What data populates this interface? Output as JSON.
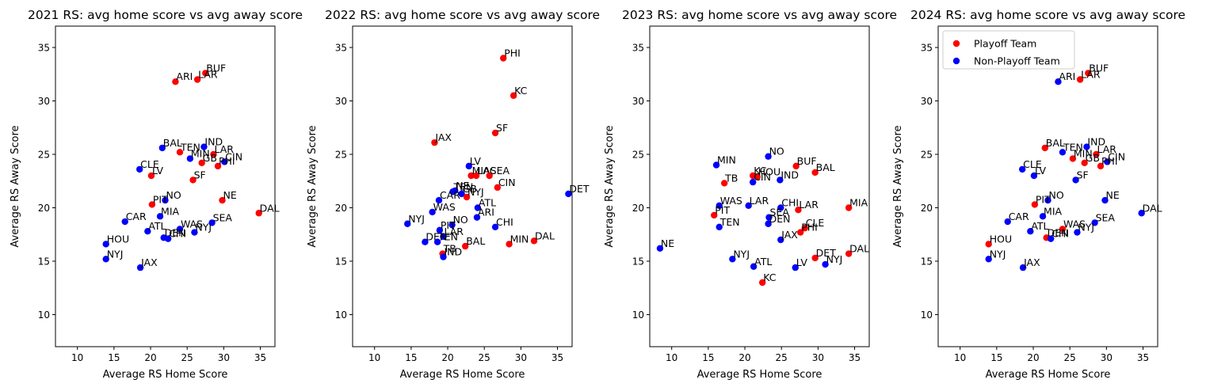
{
  "chart_data": [
    {
      "type": "scatter",
      "title": "2021 RS: avg home score vs avg away score",
      "xlabel": "Average RS Home Score",
      "ylabel": "Average RS Away Score",
      "xlim": [
        7,
        37
      ],
      "ylim": [
        7,
        37
      ],
      "xticks": [
        10,
        15,
        20,
        25,
        30,
        35
      ],
      "yticks": [
        10,
        15,
        20,
        25,
        30,
        35
      ],
      "grid": false,
      "points": [
        {
          "team": "BUF",
          "x": 27.5,
          "y": 32.6,
          "playoff": true
        },
        {
          "team": "ARI",
          "x": 23.4,
          "y": 31.8,
          "playoff": true
        },
        {
          "team": "LAR",
          "x": 26.4,
          "y": 32.0,
          "playoff": true
        },
        {
          "team": "IND",
          "x": 27.3,
          "y": 25.7,
          "playoff": false
        },
        {
          "team": "BAL",
          "x": 21.6,
          "y": 25.6,
          "playoff": false
        },
        {
          "team": "TEN",
          "x": 24.0,
          "y": 25.2,
          "playoff": true
        },
        {
          "team": "LAR",
          "x": 28.6,
          "y": 25.0,
          "playoff": true
        },
        {
          "team": "CIN",
          "x": 30.1,
          "y": 24.3,
          "playoff": false
        },
        {
          "team": "MIN",
          "x": 25.4,
          "y": 24.6,
          "playoff": false
        },
        {
          "team": "GB",
          "x": 27.0,
          "y": 24.2,
          "playoff": true
        },
        {
          "team": "PHI",
          "x": 29.2,
          "y": 23.9,
          "playoff": true
        },
        {
          "team": "CLE",
          "x": 18.5,
          "y": 23.6,
          "playoff": false
        },
        {
          "team": "LV",
          "x": 20.1,
          "y": 23.0,
          "playoff": true
        },
        {
          "team": "SF",
          "x": 25.8,
          "y": 22.6,
          "playoff": true
        },
        {
          "team": "NO",
          "x": 22.0,
          "y": 20.7,
          "playoff": false
        },
        {
          "team": "NE",
          "x": 29.8,
          "y": 20.7,
          "playoff": true
        },
        {
          "team": "PIT",
          "x": 20.2,
          "y": 20.3,
          "playoff": true
        },
        {
          "team": "MIA",
          "x": 21.3,
          "y": 19.2,
          "playoff": false
        },
        {
          "team": "DAL",
          "x": 34.8,
          "y": 19.5,
          "playoff": true
        },
        {
          "team": "CAR",
          "x": 16.5,
          "y": 18.7,
          "playoff": false
        },
        {
          "team": "SEA",
          "x": 28.4,
          "y": 18.6,
          "playoff": false
        },
        {
          "team": "ATL",
          "x": 19.6,
          "y": 17.8,
          "playoff": false
        },
        {
          "team": "WAS",
          "x": 24.0,
          "y": 18.0,
          "playoff": false
        },
        {
          "team": "NYJ",
          "x": 26.0,
          "y": 17.7,
          "playoff": false
        },
        {
          "team": "DEN",
          "x": 21.8,
          "y": 17.2,
          "playoff": false
        },
        {
          "team": "CHI",
          "x": 22.4,
          "y": 17.1,
          "playoff": false
        },
        {
          "team": "HOU",
          "x": 13.9,
          "y": 16.6,
          "playoff": false
        },
        {
          "team": "NYJ",
          "x": 13.9,
          "y": 15.2,
          "playoff": false
        },
        {
          "team": "JAX",
          "x": 18.6,
          "y": 14.4,
          "playoff": false
        }
      ]
    },
    {
      "type": "scatter",
      "title": "2022 RS: avg home score vs avg away score",
      "xlabel": "Average RS Home Score",
      "ylabel": "Average RS Away Score",
      "xlim": [
        7,
        37
      ],
      "ylim": [
        7,
        37
      ],
      "xticks": [
        10,
        15,
        20,
        25,
        30,
        35
      ],
      "yticks": [
        10,
        15,
        20,
        25,
        30,
        35
      ],
      "grid": false,
      "points": [
        {
          "team": "PHI",
          "x": 27.6,
          "y": 34.0,
          "playoff": true
        },
        {
          "team": "KC",
          "x": 29.0,
          "y": 30.5,
          "playoff": true
        },
        {
          "team": "SF",
          "x": 26.5,
          "y": 27.0,
          "playoff": true
        },
        {
          "team": "JAX",
          "x": 18.2,
          "y": 26.1,
          "playoff": true
        },
        {
          "team": "LV",
          "x": 22.9,
          "y": 23.9,
          "playoff": false
        },
        {
          "team": "MIA",
          "x": 23.2,
          "y": 23.0,
          "playoff": true
        },
        {
          "team": "LAC",
          "x": 23.9,
          "y": 23.0,
          "playoff": true
        },
        {
          "team": "SEA",
          "x": 25.7,
          "y": 23.0,
          "playoff": true
        },
        {
          "team": "CIN",
          "x": 26.8,
          "y": 21.9,
          "playoff": true
        },
        {
          "team": "DET",
          "x": 36.5,
          "y": 21.3,
          "playoff": false
        },
        {
          "team": "NE",
          "x": 21.0,
          "y": 21.6,
          "playoff": false
        },
        {
          "team": "TEN",
          "x": 20.7,
          "y": 21.5,
          "playoff": false
        },
        {
          "team": "GB",
          "x": 21.9,
          "y": 21.3,
          "playoff": false
        },
        {
          "team": "NYJ",
          "x": 22.6,
          "y": 21.0,
          "playoff": true
        },
        {
          "team": "CAR",
          "x": 18.8,
          "y": 20.7,
          "playoff": false
        },
        {
          "team": "ATL",
          "x": 24.1,
          "y": 20.0,
          "playoff": false
        },
        {
          "team": "WAS",
          "x": 17.9,
          "y": 19.6,
          "playoff": false
        },
        {
          "team": "ARI",
          "x": 24.0,
          "y": 19.1,
          "playoff": false
        },
        {
          "team": "NYJ",
          "x": 14.5,
          "y": 18.5,
          "playoff": false
        },
        {
          "team": "NO",
          "x": 20.6,
          "y": 18.4,
          "playoff": false
        },
        {
          "team": "CHI",
          "x": 26.5,
          "y": 18.2,
          "playoff": false
        },
        {
          "team": "PIT",
          "x": 18.9,
          "y": 17.9,
          "playoff": false
        },
        {
          "team": "LAR",
          "x": 19.4,
          "y": 17.3,
          "playoff": false
        },
        {
          "team": "DEN",
          "x": 16.9,
          "y": 16.8,
          "playoff": false
        },
        {
          "team": "TEN",
          "x": 18.6,
          "y": 16.8,
          "playoff": false
        },
        {
          "team": "DAL",
          "x": 31.8,
          "y": 16.9,
          "playoff": true
        },
        {
          "team": "MIN",
          "x": 28.4,
          "y": 16.6,
          "playoff": true
        },
        {
          "team": "BAL",
          "x": 22.4,
          "y": 16.4,
          "playoff": true
        },
        {
          "team": "TB",
          "x": 19.3,
          "y": 15.7,
          "playoff": true
        },
        {
          "team": "IND",
          "x": 19.4,
          "y": 15.4,
          "playoff": false
        }
      ]
    },
    {
      "type": "scatter",
      "title": "2023 RS: avg home score vs avg away score",
      "xlabel": "Average RS Home Score",
      "ylabel": "Average RS Away Score",
      "xlim": [
        7,
        37
      ],
      "ylim": [
        7,
        37
      ],
      "xticks": [
        10,
        15,
        20,
        25,
        30,
        35
      ],
      "yticks": [
        10,
        15,
        20,
        25,
        30,
        35
      ],
      "grid": false,
      "points": [
        {
          "team": "NO",
          "x": 23.2,
          "y": 24.8,
          "playoff": false
        },
        {
          "team": "MIN",
          "x": 16.1,
          "y": 24.0,
          "playoff": false
        },
        {
          "team": "BUF",
          "x": 27.0,
          "y": 23.9,
          "playoff": true
        },
        {
          "team": "BAL",
          "x": 29.6,
          "y": 23.3,
          "playoff": true
        },
        {
          "team": "KC",
          "x": 21.1,
          "y": 23.0,
          "playoff": true
        },
        {
          "team": "HOU",
          "x": 21.7,
          "y": 22.9,
          "playoff": true
        },
        {
          "team": "IND",
          "x": 24.8,
          "y": 22.6,
          "playoff": false
        },
        {
          "team": "CIN",
          "x": 21.1,
          "y": 22.4,
          "playoff": false
        },
        {
          "team": "TB",
          "x": 17.2,
          "y": 22.3,
          "playoff": true
        },
        {
          "team": "WAS",
          "x": 16.5,
          "y": 20.2,
          "playoff": false
        },
        {
          "team": "LAR",
          "x": 20.5,
          "y": 20.2,
          "playoff": false
        },
        {
          "team": "CHI",
          "x": 24.9,
          "y": 20.0,
          "playoff": false
        },
        {
          "team": "LAR",
          "x": 27.3,
          "y": 19.8,
          "playoff": true
        },
        {
          "team": "MIA",
          "x": 34.2,
          "y": 20.0,
          "playoff": true
        },
        {
          "team": "PIT",
          "x": 15.8,
          "y": 19.3,
          "playoff": true
        },
        {
          "team": "SEA",
          "x": 23.3,
          "y": 19.1,
          "playoff": false
        },
        {
          "team": "DEN",
          "x": 23.2,
          "y": 18.5,
          "playoff": false
        },
        {
          "team": "TEN",
          "x": 16.5,
          "y": 18.2,
          "playoff": false
        },
        {
          "team": "CLE",
          "x": 28.2,
          "y": 18.1,
          "playoff": true
        },
        {
          "team": "PHI",
          "x": 27.6,
          "y": 17.7,
          "playoff": true
        },
        {
          "team": "JAX",
          "x": 24.9,
          "y": 17.0,
          "playoff": false
        },
        {
          "team": "NE",
          "x": 8.4,
          "y": 16.2,
          "playoff": false
        },
        {
          "team": "DET",
          "x": 29.6,
          "y": 15.3,
          "playoff": true
        },
        {
          "team": "DAL",
          "x": 34.2,
          "y": 15.7,
          "playoff": true
        },
        {
          "team": "NYJ",
          "x": 18.3,
          "y": 15.2,
          "playoff": false
        },
        {
          "team": "NYJ",
          "x": 31.0,
          "y": 14.7,
          "playoff": false
        },
        {
          "team": "ATL",
          "x": 21.2,
          "y": 14.5,
          "playoff": false
        },
        {
          "team": "LV",
          "x": 26.9,
          "y": 14.4,
          "playoff": false
        },
        {
          "team": "KC",
          "x": 22.4,
          "y": 13.0,
          "playoff": true
        }
      ]
    },
    {
      "type": "scatter",
      "title": "2024 RS: avg home score vs avg away score",
      "xlabel": "Average RS Home Score",
      "ylabel": "Average RS Away Score",
      "xlim": [
        7,
        37
      ],
      "ylim": [
        7,
        37
      ],
      "xticks": [
        10,
        15,
        20,
        25,
        30,
        35
      ],
      "yticks": [
        10,
        15,
        20,
        25,
        30,
        35
      ],
      "grid": false,
      "legend": {
        "position": "upper-left",
        "entries": [
          {
            "label": "Playoff Team",
            "color": "#ff0000"
          },
          {
            "label": "Non-Playoff Team",
            "color": "#0000ff"
          }
        ]
      },
      "points": [
        {
          "team": "BUF",
          "x": 27.5,
          "y": 32.6,
          "playoff": true
        },
        {
          "team": "ARI",
          "x": 23.4,
          "y": 31.8,
          "playoff": false
        },
        {
          "team": "LAR",
          "x": 26.4,
          "y": 32.0,
          "playoff": true
        },
        {
          "team": "IND",
          "x": 27.3,
          "y": 25.7,
          "playoff": false
        },
        {
          "team": "BAL",
          "x": 21.6,
          "y": 25.6,
          "playoff": true
        },
        {
          "team": "TEN",
          "x": 24.0,
          "y": 25.2,
          "playoff": false
        },
        {
          "team": "LAR",
          "x": 28.6,
          "y": 25.0,
          "playoff": true
        },
        {
          "team": "CIN",
          "x": 30.1,
          "y": 24.3,
          "playoff": false
        },
        {
          "team": "MIN",
          "x": 25.4,
          "y": 24.6,
          "playoff": true
        },
        {
          "team": "GB",
          "x": 27.0,
          "y": 24.2,
          "playoff": true
        },
        {
          "team": "PHI",
          "x": 29.2,
          "y": 23.9,
          "playoff": true
        },
        {
          "team": "CLE",
          "x": 18.5,
          "y": 23.6,
          "playoff": false
        },
        {
          "team": "LV",
          "x": 20.1,
          "y": 23.0,
          "playoff": false
        },
        {
          "team": "SF",
          "x": 25.8,
          "y": 22.6,
          "playoff": false
        },
        {
          "team": "NO",
          "x": 22.0,
          "y": 20.7,
          "playoff": false
        },
        {
          "team": "NE",
          "x": 29.8,
          "y": 20.7,
          "playoff": false
        },
        {
          "team": "PIT",
          "x": 20.2,
          "y": 20.3,
          "playoff": true
        },
        {
          "team": "MIA",
          "x": 21.3,
          "y": 19.2,
          "playoff": false
        },
        {
          "team": "DAL",
          "x": 34.8,
          "y": 19.5,
          "playoff": false
        },
        {
          "team": "CAR",
          "x": 16.5,
          "y": 18.7,
          "playoff": false
        },
        {
          "team": "SEA",
          "x": 28.4,
          "y": 18.6,
          "playoff": false
        },
        {
          "team": "ATL",
          "x": 19.6,
          "y": 17.8,
          "playoff": false
        },
        {
          "team": "WAS",
          "x": 24.0,
          "y": 18.0,
          "playoff": true
        },
        {
          "team": "NYJ",
          "x": 26.0,
          "y": 17.7,
          "playoff": false
        },
        {
          "team": "DEN",
          "x": 21.8,
          "y": 17.2,
          "playoff": true
        },
        {
          "team": "CHI",
          "x": 22.4,
          "y": 17.1,
          "playoff": false
        },
        {
          "team": "HOU",
          "x": 13.9,
          "y": 16.6,
          "playoff": true
        },
        {
          "team": "NYJ",
          "x": 13.9,
          "y": 15.2,
          "playoff": false
        },
        {
          "team": "JAX",
          "x": 18.6,
          "y": 14.4,
          "playoff": false
        }
      ]
    }
  ],
  "colors": {
    "playoff": "#ff0000",
    "non_playoff": "#0000ff"
  }
}
